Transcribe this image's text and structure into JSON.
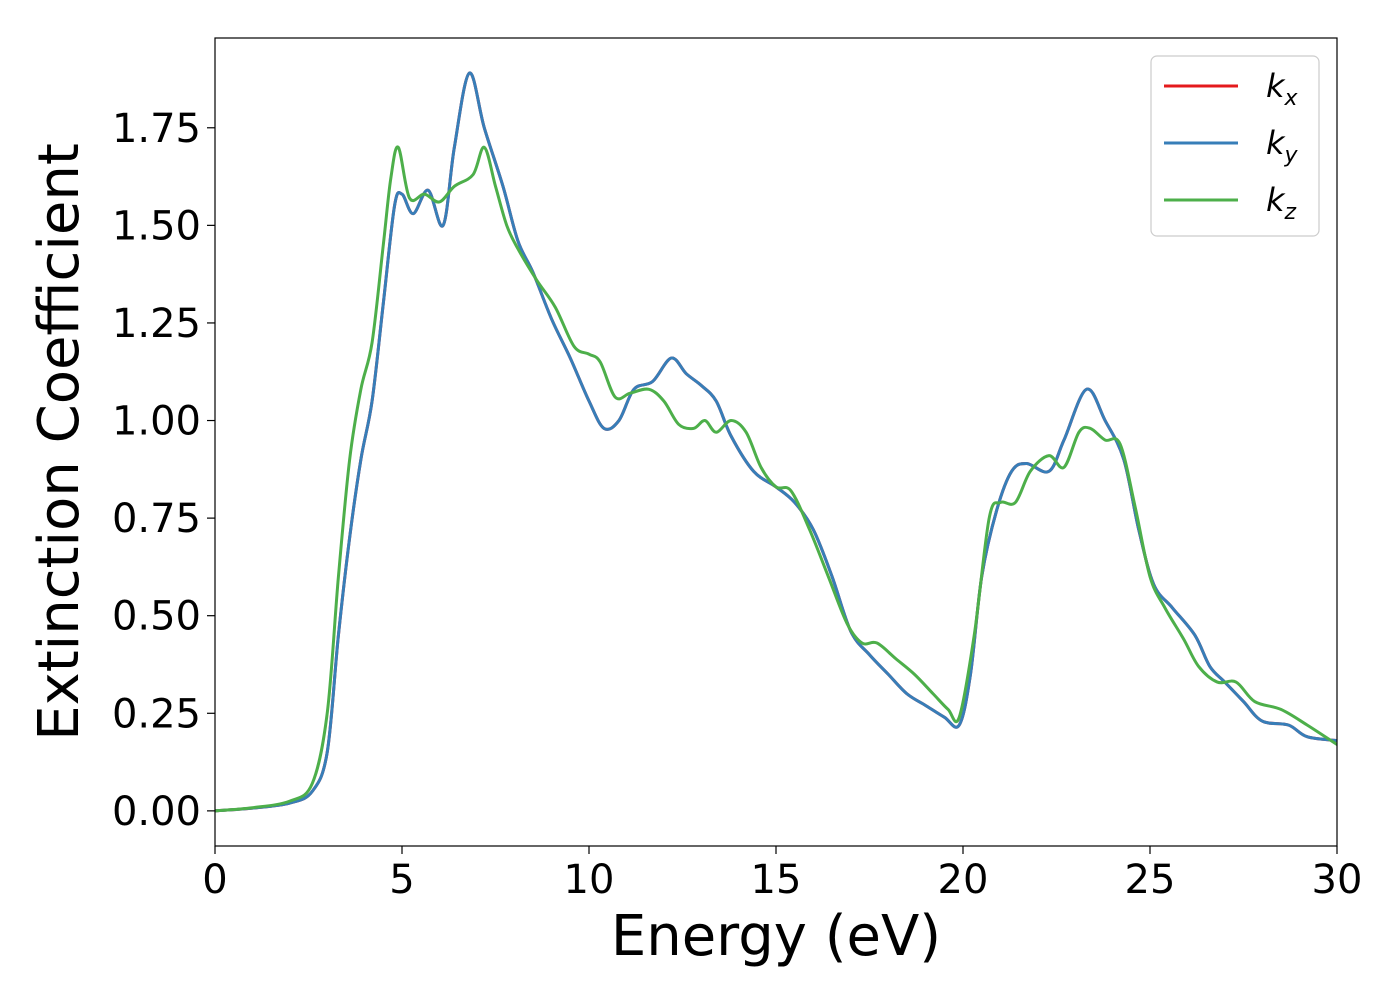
{
  "chart_data": {
    "type": "line",
    "title": "",
    "xlabel": "Energy (eV)",
    "ylabel": "Extinction Coefficient",
    "xlim": [
      0,
      30
    ],
    "ylim": [
      -0.09,
      1.98
    ],
    "x_ticks": [
      0,
      5,
      10,
      15,
      20,
      25,
      30
    ],
    "x_tick_labels": [
      "0",
      "5",
      "10",
      "15",
      "20",
      "25",
      "30"
    ],
    "y_ticks": [
      0.0,
      0.25,
      0.5,
      0.75,
      1.0,
      1.25,
      1.5,
      1.75
    ],
    "y_tick_labels": [
      "0.00",
      "0.25",
      "0.50",
      "0.75",
      "1.00",
      "1.25",
      "1.50",
      "1.75"
    ],
    "grid": false,
    "legend_placement": "top-right",
    "legend": [
      {
        "base": "k",
        "sub": "x",
        "color": "#e41a1c"
      },
      {
        "base": "k",
        "sub": "y",
        "color": "#377eb8"
      },
      {
        "base": "k",
        "sub": "z",
        "color": "#4daf4a"
      }
    ],
    "series": [
      {
        "name": "k_x",
        "color": "#e41a1c",
        "points": [
          [
            0,
            0
          ],
          [
            1,
            0.007
          ],
          [
            2,
            0.02
          ],
          [
            2.6,
            0.05
          ],
          [
            3.0,
            0.15
          ],
          [
            3.3,
            0.45
          ],
          [
            3.6,
            0.7
          ],
          [
            3.9,
            0.9
          ],
          [
            4.2,
            1.05
          ],
          [
            4.5,
            1.3
          ],
          [
            4.8,
            1.55
          ],
          [
            5.0,
            1.58
          ],
          [
            5.3,
            1.53
          ],
          [
            5.7,
            1.59
          ],
          [
            6.1,
            1.5
          ],
          [
            6.4,
            1.7
          ],
          [
            6.8,
            1.89
          ],
          [
            7.2,
            1.75
          ],
          [
            7.7,
            1.6
          ],
          [
            8.1,
            1.46
          ],
          [
            8.5,
            1.38
          ],
          [
            9,
            1.26
          ],
          [
            9.5,
            1.16
          ],
          [
            10,
            1.05
          ],
          [
            10.4,
            0.98
          ],
          [
            10.8,
            1.0
          ],
          [
            11.2,
            1.08
          ],
          [
            11.7,
            1.1
          ],
          [
            12.2,
            1.16
          ],
          [
            12.6,
            1.12
          ],
          [
            13.0,
            1.09
          ],
          [
            13.4,
            1.05
          ],
          [
            13.8,
            0.96
          ],
          [
            14.4,
            0.87
          ],
          [
            15,
            0.83
          ],
          [
            15.5,
            0.79
          ],
          [
            16,
            0.72
          ],
          [
            16.5,
            0.6
          ],
          [
            17,
            0.46
          ],
          [
            17.5,
            0.4
          ],
          [
            18,
            0.35
          ],
          [
            18.5,
            0.3
          ],
          [
            19,
            0.27
          ],
          [
            19.5,
            0.24
          ],
          [
            19.9,
            0.22
          ],
          [
            20.2,
            0.35
          ],
          [
            20.5,
            0.6
          ],
          [
            20.9,
            0.77
          ],
          [
            21.3,
            0.87
          ],
          [
            21.7,
            0.89
          ],
          [
            22.3,
            0.87
          ],
          [
            22.7,
            0.95
          ],
          [
            23.3,
            1.08
          ],
          [
            23.8,
            1.0
          ],
          [
            24.3,
            0.9
          ],
          [
            24.7,
            0.72
          ],
          [
            25.1,
            0.58
          ],
          [
            25.6,
            0.52
          ],
          [
            26.2,
            0.45
          ],
          [
            26.6,
            0.37
          ],
          [
            27.0,
            0.33
          ],
          [
            27.5,
            0.28
          ],
          [
            28.0,
            0.23
          ],
          [
            28.7,
            0.22
          ],
          [
            29.2,
            0.19
          ],
          [
            30,
            0.18
          ]
        ]
      },
      {
        "name": "k_y",
        "color": "#377eb8",
        "points": [
          [
            0,
            0
          ],
          [
            1,
            0.007
          ],
          [
            2,
            0.02
          ],
          [
            2.6,
            0.05
          ],
          [
            3.0,
            0.15
          ],
          [
            3.3,
            0.45
          ],
          [
            3.6,
            0.7
          ],
          [
            3.9,
            0.9
          ],
          [
            4.2,
            1.05
          ],
          [
            4.5,
            1.3
          ],
          [
            4.8,
            1.55
          ],
          [
            5.0,
            1.58
          ],
          [
            5.3,
            1.53
          ],
          [
            5.7,
            1.59
          ],
          [
            6.1,
            1.5
          ],
          [
            6.4,
            1.7
          ],
          [
            6.8,
            1.89
          ],
          [
            7.2,
            1.75
          ],
          [
            7.7,
            1.6
          ],
          [
            8.1,
            1.46
          ],
          [
            8.5,
            1.38
          ],
          [
            9,
            1.26
          ],
          [
            9.5,
            1.16
          ],
          [
            10,
            1.05
          ],
          [
            10.4,
            0.98
          ],
          [
            10.8,
            1.0
          ],
          [
            11.2,
            1.08
          ],
          [
            11.7,
            1.1
          ],
          [
            12.2,
            1.16
          ],
          [
            12.6,
            1.12
          ],
          [
            13.0,
            1.09
          ],
          [
            13.4,
            1.05
          ],
          [
            13.8,
            0.96
          ],
          [
            14.4,
            0.87
          ],
          [
            15,
            0.83
          ],
          [
            15.5,
            0.79
          ],
          [
            16,
            0.72
          ],
          [
            16.5,
            0.6
          ],
          [
            17,
            0.46
          ],
          [
            17.5,
            0.4
          ],
          [
            18,
            0.35
          ],
          [
            18.5,
            0.3
          ],
          [
            19,
            0.27
          ],
          [
            19.5,
            0.24
          ],
          [
            19.9,
            0.22
          ],
          [
            20.2,
            0.35
          ],
          [
            20.5,
            0.6
          ],
          [
            20.9,
            0.77
          ],
          [
            21.3,
            0.87
          ],
          [
            21.7,
            0.89
          ],
          [
            22.3,
            0.87
          ],
          [
            22.7,
            0.95
          ],
          [
            23.3,
            1.08
          ],
          [
            23.8,
            1.0
          ],
          [
            24.3,
            0.9
          ],
          [
            24.7,
            0.72
          ],
          [
            25.1,
            0.58
          ],
          [
            25.6,
            0.52
          ],
          [
            26.2,
            0.45
          ],
          [
            26.6,
            0.37
          ],
          [
            27.0,
            0.33
          ],
          [
            27.5,
            0.28
          ],
          [
            28.0,
            0.23
          ],
          [
            28.7,
            0.22
          ],
          [
            29.2,
            0.19
          ],
          [
            30,
            0.18
          ]
        ]
      },
      {
        "name": "k_z",
        "color": "#4daf4a",
        "points": [
          [
            0,
            0
          ],
          [
            1,
            0.008
          ],
          [
            2,
            0.025
          ],
          [
            2.6,
            0.07
          ],
          [
            3.0,
            0.25
          ],
          [
            3.3,
            0.6
          ],
          [
            3.6,
            0.9
          ],
          [
            3.9,
            1.08
          ],
          [
            4.2,
            1.2
          ],
          [
            4.5,
            1.45
          ],
          [
            4.7,
            1.62
          ],
          [
            4.9,
            1.7
          ],
          [
            5.2,
            1.57
          ],
          [
            5.6,
            1.58
          ],
          [
            6.0,
            1.56
          ],
          [
            6.4,
            1.6
          ],
          [
            6.9,
            1.63
          ],
          [
            7.2,
            1.7
          ],
          [
            7.5,
            1.6
          ],
          [
            7.8,
            1.5
          ],
          [
            8.1,
            1.44
          ],
          [
            8.6,
            1.36
          ],
          [
            9.1,
            1.29
          ],
          [
            9.6,
            1.19
          ],
          [
            10,
            1.17
          ],
          [
            10.3,
            1.15
          ],
          [
            10.7,
            1.06
          ],
          [
            11.1,
            1.07
          ],
          [
            11.6,
            1.08
          ],
          [
            12.0,
            1.05
          ],
          [
            12.4,
            0.99
          ],
          [
            12.8,
            0.98
          ],
          [
            13.1,
            1.0
          ],
          [
            13.4,
            0.97
          ],
          [
            13.8,
            1.0
          ],
          [
            14.2,
            0.97
          ],
          [
            14.6,
            0.88
          ],
          [
            15,
            0.83
          ],
          [
            15.4,
            0.82
          ],
          [
            15.9,
            0.72
          ],
          [
            16.4,
            0.6
          ],
          [
            16.9,
            0.48
          ],
          [
            17.3,
            0.43
          ],
          [
            17.7,
            0.43
          ],
          [
            18.2,
            0.39
          ],
          [
            18.7,
            0.35
          ],
          [
            19.2,
            0.3
          ],
          [
            19.6,
            0.26
          ],
          [
            19.9,
            0.24
          ],
          [
            20.3,
            0.45
          ],
          [
            20.7,
            0.75
          ],
          [
            21.0,
            0.79
          ],
          [
            21.4,
            0.79
          ],
          [
            21.8,
            0.87
          ],
          [
            22.3,
            0.91
          ],
          [
            22.7,
            0.88
          ],
          [
            23.1,
            0.97
          ],
          [
            23.4,
            0.98
          ],
          [
            23.8,
            0.95
          ],
          [
            24.2,
            0.94
          ],
          [
            24.6,
            0.78
          ],
          [
            25.0,
            0.6
          ],
          [
            25.4,
            0.52
          ],
          [
            25.9,
            0.44
          ],
          [
            26.3,
            0.37
          ],
          [
            26.8,
            0.33
          ],
          [
            27.3,
            0.33
          ],
          [
            27.8,
            0.28
          ],
          [
            28.5,
            0.26
          ],
          [
            29.2,
            0.22
          ],
          [
            30,
            0.17
          ]
        ]
      }
    ]
  }
}
